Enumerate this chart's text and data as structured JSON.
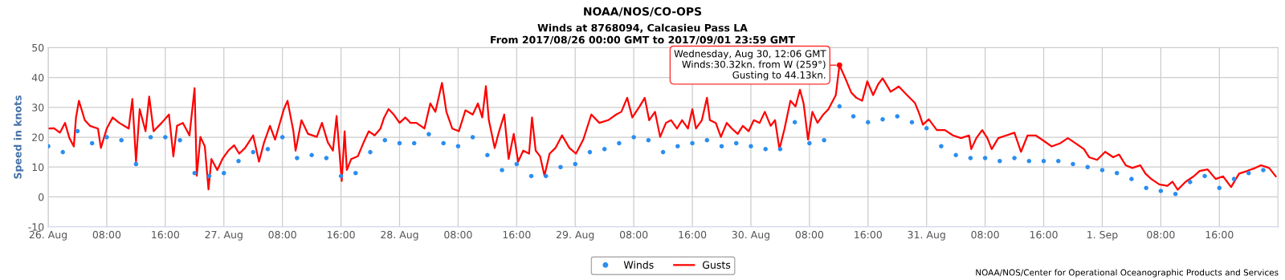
{
  "chart_data": {
    "type": "line",
    "title": "NOAA/NOS/CO-OPS",
    "subtitle": "Winds at 8768094, Calcasieu Pass LA\nFrom 2017/08/26 00:00 GMT to 2017/09/01 23:59 GMT",
    "ylabel": "Speed in knots",
    "annotations": [
      {
        "text": "Wednesday, Aug 30, 12:06 GMT\nWinds:30.32kn. from W (259°)\nGusting to 44.13kn.",
        "x": "2017-08-30T12:06",
        "y": 44.13
      },
      "NOAA/NOS/Center for Operational Oceanographic Products and Services"
    ],
    "xlim": [
      "2017-08-26T00:00",
      "2017-09-02T00:00"
    ],
    "xticks": [
      {
        "value": "2017-08-26T00:00",
        "label": "26. Aug"
      },
      {
        "value": "2017-08-26T08:00",
        "label": "08:00"
      },
      {
        "value": "2017-08-26T16:00",
        "label": "16:00"
      },
      {
        "value": "2017-08-27T00:00",
        "label": "27. Aug"
      },
      {
        "value": "2017-08-27T08:00",
        "label": "08:00"
      },
      {
        "value": "2017-08-27T16:00",
        "label": "16:00"
      },
      {
        "value": "2017-08-28T00:00",
        "label": "28. Aug"
      },
      {
        "value": "2017-08-28T08:00",
        "label": "08:00"
      },
      {
        "value": "2017-08-28T16:00",
        "label": "16:00"
      },
      {
        "value": "2017-08-29T00:00",
        "label": "29. Aug"
      },
      {
        "value": "2017-08-29T08:00",
        "label": "08:00"
      },
      {
        "value": "2017-08-29T16:00",
        "label": "16:00"
      },
      {
        "value": "2017-08-30T00:00",
        "label": "30. Aug"
      },
      {
        "value": "2017-08-30T08:00",
        "label": "08:00"
      },
      {
        "value": "2017-08-30T16:00",
        "label": "16:00"
      },
      {
        "value": "2017-08-31T00:00",
        "label": "31. Aug"
      },
      {
        "value": "2017-08-31T08:00",
        "label": "08:00"
      },
      {
        "value": "2017-08-31T16:00",
        "label": "16:00"
      },
      {
        "value": "2017-09-01T00:00",
        "label": "1. Sep"
      },
      {
        "value": "2017-09-01T08:00",
        "label": "08:00"
      },
      {
        "value": "2017-09-01T16:00",
        "label": "16:00"
      }
    ],
    "ylim": [
      -10,
      50
    ],
    "yticks": [
      -10,
      0,
      10,
      20,
      30,
      40,
      50
    ],
    "grid": true,
    "legend": "bottom",
    "series": [
      {
        "name": "Winds",
        "type": "scatter",
        "marker": "circle",
        "color": "#2b8ef0",
        "x": [
          "2017-08-26T00:00",
          "2017-08-26T02:00",
          "2017-08-26T04:00",
          "2017-08-26T06:00",
          "2017-08-26T08:00",
          "2017-08-26T10:00",
          "2017-08-26T12:00",
          "2017-08-26T14:00",
          "2017-08-26T16:00",
          "2017-08-26T18:00",
          "2017-08-26T20:00",
          "2017-08-26T22:00",
          "2017-08-27T00:00",
          "2017-08-27T02:00",
          "2017-08-27T04:00",
          "2017-08-27T06:00",
          "2017-08-27T08:00",
          "2017-08-27T10:00",
          "2017-08-27T12:00",
          "2017-08-27T14:00",
          "2017-08-27T16:00",
          "2017-08-27T18:00",
          "2017-08-27T20:00",
          "2017-08-27T22:00",
          "2017-08-28T00:00",
          "2017-08-28T02:00",
          "2017-08-28T04:00",
          "2017-08-28T06:00",
          "2017-08-28T08:00",
          "2017-08-28T10:00",
          "2017-08-28T12:00",
          "2017-08-28T14:00",
          "2017-08-28T16:00",
          "2017-08-28T18:00",
          "2017-08-28T20:00",
          "2017-08-28T22:00",
          "2017-08-29T00:00",
          "2017-08-29T02:00",
          "2017-08-29T04:00",
          "2017-08-29T06:00",
          "2017-08-29T08:00",
          "2017-08-29T10:00",
          "2017-08-29T12:00",
          "2017-08-29T14:00",
          "2017-08-29T16:00",
          "2017-08-29T18:00",
          "2017-08-29T20:00",
          "2017-08-29T22:00",
          "2017-08-30T00:00",
          "2017-08-30T02:00",
          "2017-08-30T04:00",
          "2017-08-30T06:00",
          "2017-08-30T08:00",
          "2017-08-30T10:00",
          "2017-08-30T12:06",
          "2017-08-30T14:00",
          "2017-08-30T16:00",
          "2017-08-30T18:00",
          "2017-08-30T20:00",
          "2017-08-30T22:00",
          "2017-08-31T00:00",
          "2017-08-31T02:00",
          "2017-08-31T04:00",
          "2017-08-31T06:00",
          "2017-08-31T08:00",
          "2017-08-31T10:00",
          "2017-08-31T12:00",
          "2017-08-31T14:00",
          "2017-08-31T16:00",
          "2017-08-31T18:00",
          "2017-08-31T20:00",
          "2017-08-31T22:00",
          "2017-09-01T00:00",
          "2017-09-01T02:00",
          "2017-09-01T04:00",
          "2017-09-01T06:00",
          "2017-09-01T08:00",
          "2017-09-01T10:00",
          "2017-09-01T12:00",
          "2017-09-01T14:00",
          "2017-09-01T16:00",
          "2017-09-01T18:00",
          "2017-09-01T20:00",
          "2017-09-01T22:00"
        ],
        "values": [
          17,
          15,
          22,
          18,
          20,
          19,
          11,
          20,
          20,
          19,
          8,
          7,
          8,
          12,
          15,
          16,
          20,
          13,
          14,
          13,
          7,
          8,
          15,
          19,
          18,
          18,
          21,
          18,
          17,
          20,
          14,
          9,
          11,
          7,
          7,
          10,
          11,
          15,
          16,
          18,
          20,
          19,
          15,
          17,
          18,
          19,
          17,
          18,
          17,
          16,
          16,
          25,
          18,
          19,
          30.32,
          27,
          25,
          26,
          27,
          25,
          23,
          17,
          14,
          13,
          13,
          12,
          13,
          12,
          12,
          12,
          11,
          10,
          9,
          8,
          6,
          3,
          2,
          1,
          5,
          7,
          3,
          6,
          8,
          9
        ]
      },
      {
        "name": "Gusts",
        "color": "#ff0000",
        "x": [
          "2017-08-26T00:00",
          "2017-08-26T00:48",
          "2017-08-26T01:36",
          "2017-08-26T02:18",
          "2017-08-26T02:54",
          "2017-08-26T03:30",
          "2017-08-26T03:48",
          "2017-08-26T04:12",
          "2017-08-26T05:00",
          "2017-08-26T05:42",
          "2017-08-26T06:48",
          "2017-08-26T07:12",
          "2017-08-26T08:00",
          "2017-08-26T08:48",
          "2017-08-26T09:42",
          "2017-08-26T11:00",
          "2017-08-26T11:30",
          "2017-08-26T12:00",
          "2017-08-26T12:30",
          "2017-08-26T13:18",
          "2017-08-26T13:48",
          "2017-08-26T14:24",
          "2017-08-26T15:30",
          "2017-08-26T16:30",
          "2017-08-26T17:06",
          "2017-08-26T17:36",
          "2017-08-26T18:24",
          "2017-08-26T19:18",
          "2017-08-26T20:00",
          "2017-08-26T20:18",
          "2017-08-26T20:48",
          "2017-08-26T21:24",
          "2017-08-26T21:54",
          "2017-08-26T22:18",
          "2017-08-26T23:06",
          "2017-08-26T23:48",
          "2017-08-27T00:36",
          "2017-08-27T01:24",
          "2017-08-27T02:06",
          "2017-08-27T02:54",
          "2017-08-27T04:00",
          "2017-08-27T04:48",
          "2017-08-27T05:30",
          "2017-08-27T06:18",
          "2017-08-27T07:00",
          "2017-08-27T08:12",
          "2017-08-27T08:42",
          "2017-08-27T09:30",
          "2017-08-27T09:48",
          "2017-08-27T10:36",
          "2017-08-27T11:30",
          "2017-08-27T12:42",
          "2017-08-27T13:24",
          "2017-08-27T14:12",
          "2017-08-27T14:54",
          "2017-08-27T15:24",
          "2017-08-27T16:06",
          "2017-08-27T16:30",
          "2017-08-27T16:48",
          "2017-08-27T17:24",
          "2017-08-27T18:18",
          "2017-08-27T19:06",
          "2017-08-27T19:48",
          "2017-08-27T20:36",
          "2017-08-27T21:24",
          "2017-08-27T21:54",
          "2017-08-27T22:30",
          "2017-08-27T23:12",
          "2017-08-28T00:00",
          "2017-08-28T00:48",
          "2017-08-28T01:30",
          "2017-08-28T02:18",
          "2017-08-28T03:24",
          "2017-08-28T04:12",
          "2017-08-28T04:54",
          "2017-08-28T05:48",
          "2017-08-28T06:24",
          "2017-08-28T07:12",
          "2017-08-28T08:06",
          "2017-08-28T09:00",
          "2017-08-28T10:00",
          "2017-08-28T10:42",
          "2017-08-28T11:18",
          "2017-08-28T11:48",
          "2017-08-28T12:12",
          "2017-08-28T13:00",
          "2017-08-28T13:30",
          "2017-08-28T14:18",
          "2017-08-28T14:54",
          "2017-08-28T15:36",
          "2017-08-28T16:12",
          "2017-08-28T16:54",
          "2017-08-28T17:42",
          "2017-08-28T18:06",
          "2017-08-28T18:36",
          "2017-08-28T19:12",
          "2017-08-28T19:48",
          "2017-08-28T20:30",
          "2017-08-28T21:18",
          "2017-08-28T22:12",
          "2017-08-28T23:12",
          "2017-08-29T00:06",
          "2017-08-29T01:06",
          "2017-08-29T02:12",
          "2017-08-29T03:18",
          "2017-08-29T04:30",
          "2017-08-29T05:36",
          "2017-08-29T06:18",
          "2017-08-29T07:06",
          "2017-08-29T07:48",
          "2017-08-29T08:48",
          "2017-08-29T09:30",
          "2017-08-29T10:06",
          "2017-08-29T10:54",
          "2017-08-29T11:36",
          "2017-08-29T12:24",
          "2017-08-29T13:06",
          "2017-08-29T13:54",
          "2017-08-29T14:36",
          "2017-08-29T15:24",
          "2017-08-29T16:00",
          "2017-08-29T16:30",
          "2017-08-29T17:18",
          "2017-08-29T18:00",
          "2017-08-29T18:24",
          "2017-08-29T19:12",
          "2017-08-29T19:54",
          "2017-08-29T20:42",
          "2017-08-29T21:24",
          "2017-08-29T22:12",
          "2017-08-29T22:54",
          "2017-08-29T23:42",
          "2017-08-30T00:24",
          "2017-08-30T01:12",
          "2017-08-30T01:54",
          "2017-08-30T02:42",
          "2017-08-30T03:18",
          "2017-08-30T03:54",
          "2017-08-30T04:36",
          "2017-08-30T05:24",
          "2017-08-30T06:06",
          "2017-08-30T06:42",
          "2017-08-30T07:12",
          "2017-08-30T07:48",
          "2017-08-30T08:24",
          "2017-08-30T09:06",
          "2017-08-30T09:54",
          "2017-08-30T10:36",
          "2017-08-30T11:36",
          "2017-08-30T12:06",
          "2017-08-30T12:54",
          "2017-08-30T13:42",
          "2017-08-30T14:24",
          "2017-08-30T15:12",
          "2017-08-30T15:54",
          "2017-08-30T16:42",
          "2017-08-30T17:24",
          "2017-08-30T18:00",
          "2017-08-30T19:06",
          "2017-08-30T20:12",
          "2017-08-30T21:18",
          "2017-08-30T22:24",
          "2017-08-30T23:00",
          "2017-08-30T23:30",
          "2017-08-31T00:18",
          "2017-08-31T01:24",
          "2017-08-31T02:30",
          "2017-08-31T03:36",
          "2017-08-31T04:42",
          "2017-08-31T05:48",
          "2017-08-31T06:06",
          "2017-08-31T06:48",
          "2017-08-31T07:36",
          "2017-08-31T08:18",
          "2017-08-31T08:54",
          "2017-08-31T09:48",
          "2017-08-31T10:54",
          "2017-08-31T12:00",
          "2017-08-31T12:54",
          "2017-08-31T13:48",
          "2017-08-31T14:54",
          "2017-08-31T16:00",
          "2017-08-31T17:06",
          "2017-08-31T18:12",
          "2017-08-31T19:18",
          "2017-08-31T20:24",
          "2017-08-31T21:30",
          "2017-08-31T22:12",
          "2017-08-31T23:18",
          "2017-09-01T00:24",
          "2017-09-01T01:30",
          "2017-09-01T02:18",
          "2017-09-01T03:12",
          "2017-09-01T04:06",
          "2017-09-01T05:12",
          "2017-09-01T05:54",
          "2017-09-01T06:42",
          "2017-09-01T07:48",
          "2017-09-01T08:54",
          "2017-09-01T09:36",
          "2017-09-01T10:18",
          "2017-09-01T11:24",
          "2017-09-01T12:30",
          "2017-09-01T13:18",
          "2017-09-01T14:24",
          "2017-09-01T15:30",
          "2017-09-01T16:30",
          "2017-09-01T17:36",
          "2017-09-01T18:42",
          "2017-09-01T19:48",
          "2017-09-01T20:54",
          "2017-09-01T21:42",
          "2017-09-01T22:48",
          "2017-09-01T23:42"
        ],
        "values": [
          22.9,
          23,
          21.5,
          24.8,
          19.7,
          16.9,
          26.6,
          32.2,
          25.7,
          23.8,
          22.9,
          16.4,
          22.9,
          26.6,
          24.8,
          22.9,
          32.8,
          11.8,
          29.4,
          22,
          33.6,
          22,
          24.8,
          27.6,
          13.6,
          23.8,
          24.8,
          20.6,
          36.4,
          7.1,
          20.1,
          16.9,
          2.5,
          12.7,
          9,
          12.7,
          15.5,
          17.3,
          14.5,
          16.4,
          20.6,
          11.8,
          18.3,
          23.8,
          19.2,
          29.4,
          32.2,
          22,
          15.5,
          25.7,
          21.1,
          20.1,
          24.8,
          18.3,
          15.5,
          27.1,
          5.3,
          22,
          9,
          12.7,
          13.6,
          18.3,
          22,
          20.6,
          22.9,
          26.6,
          29.4,
          27.6,
          24.8,
          26.6,
          24.8,
          24.8,
          22.9,
          31.3,
          28.5,
          38.2,
          28.5,
          22.9,
          22,
          29,
          27.6,
          31.3,
          26.6,
          37.1,
          25.7,
          16.4,
          21.1,
          27.6,
          12.7,
          21.1,
          11.8,
          15.5,
          14.5,
          26.6,
          15.5,
          13.6,
          7.1,
          14.5,
          16.4,
          20.6,
          16.4,
          14.5,
          19.2,
          27.6,
          24.8,
          25.7,
          27.6,
          28.5,
          33.2,
          26.6,
          30.3,
          33.2,
          25.7,
          28.5,
          20.1,
          24.8,
          25.7,
          22.9,
          25.7,
          22.9,
          29.4,
          22.9,
          25.7,
          33.2,
          25.7,
          24.8,
          20.1,
          24.8,
          22.9,
          21.1,
          23.8,
          22,
          25.7,
          24.8,
          28.5,
          23.8,
          25.7,
          16,
          22.9,
          32.2,
          30.3,
          35.9,
          31.3,
          19.2,
          28.5,
          24.8,
          27.6,
          29.4,
          34.1,
          44.13,
          39.7,
          35,
          33.2,
          32.2,
          38.7,
          34.1,
          37.8,
          39.7,
          35.2,
          37,
          34.2,
          31.5,
          27.9,
          24.2,
          26,
          22.4,
          22.4,
          20.6,
          19.7,
          20.6,
          16,
          19.7,
          22.4,
          19.7,
          16,
          19.7,
          20.6,
          21.5,
          15.1,
          20.6,
          20.6,
          18.8,
          16.9,
          17.9,
          19.7,
          17.9,
          16,
          13.3,
          12.4,
          15.1,
          13.3,
          14.2,
          10.6,
          9.7,
          10.6,
          7.8,
          6,
          4.2,
          3.7,
          5.1,
          2.4,
          5.1,
          6.9,
          8.7,
          9.2,
          6,
          6.9,
          3.3,
          7.8,
          8.7,
          9.7,
          10.6,
          9.7,
          6.9
        ]
      }
    ]
  }
}
